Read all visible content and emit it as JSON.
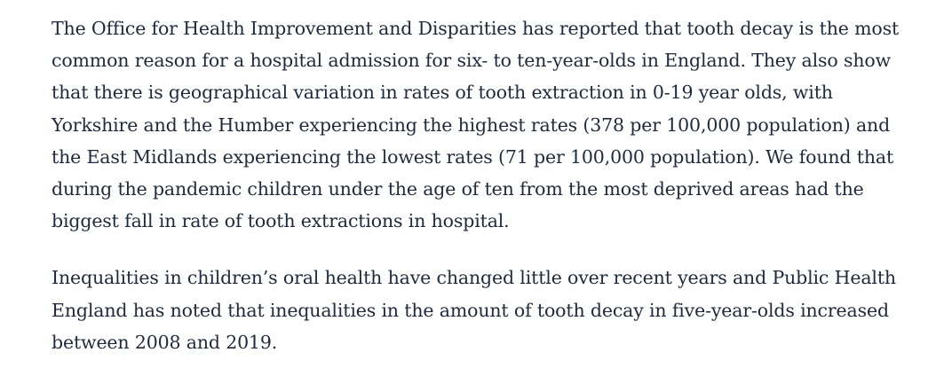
{
  "article": {
    "paragraphs": [
      "The Office for Health Improvement and Disparities has reported that tooth decay is the most common reason for a hospital admission for six- to ten-year-olds in England. They also show that there is geographical variation in rates of tooth extraction in 0-19 year olds, with Yorkshire and the Humber experiencing the highest rates (378 per 100,000 population) and the East Midlands experiencing the lowest rates (71 per 100,000 population). We found that during the pandemic children under the age of ten from the most deprived areas had the biggest fall in rate of tooth extractions in hospital.",
      "Inequalities in children’s oral health have changed little over recent years and Public Health England has noted that inequalities in the amount of tooth decay in five-year-olds increased between 2008 and 2019."
    ]
  },
  "colors": {
    "text": "#1f2a3c",
    "background": "#ffffff"
  }
}
